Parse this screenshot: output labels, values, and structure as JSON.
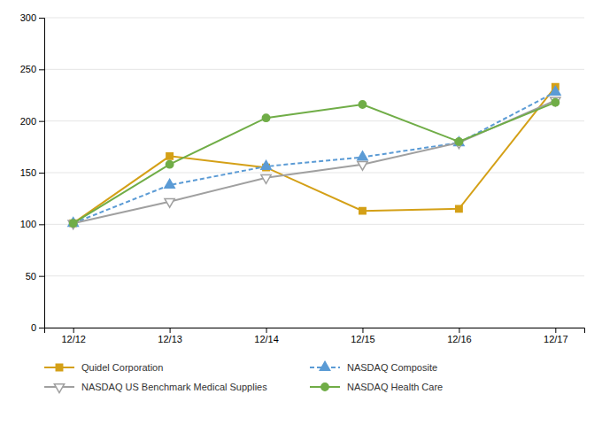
{
  "chart_data": {
    "type": "line",
    "categories": [
      "12/12",
      "12/13",
      "12/14",
      "12/15",
      "12/16",
      "12/17"
    ],
    "series": [
      {
        "name": "Quidel Corporation",
        "color": "#D4A017",
        "values": [
          101,
          166,
          155,
          113,
          115,
          233
        ],
        "marker": "square",
        "line_style": "solid"
      },
      {
        "name": "NASDAQ Composite",
        "color": "#5B9BD5",
        "values": [
          101,
          138,
          156,
          165,
          179,
          228
        ],
        "marker": "triangle-up",
        "line_style": "dashed"
      },
      {
        "name": "NASDAQ US Benchmark Medical Supplies",
        "color": "#A0A0A0",
        "values": [
          101,
          122,
          145,
          158,
          179,
          220
        ],
        "marker": "triangle-down-open",
        "line_style": "solid"
      },
      {
        "name": "NASDAQ Health Care",
        "color": "#70AD47",
        "values": [
          101,
          158,
          203,
          216,
          180,
          218
        ],
        "marker": "circle",
        "line_style": "solid"
      }
    ],
    "ylim": [
      0,
      300
    ],
    "yticks": [
      0,
      50,
      100,
      150,
      200,
      250,
      300
    ],
    "grid": true,
    "legend": "bottom"
  }
}
